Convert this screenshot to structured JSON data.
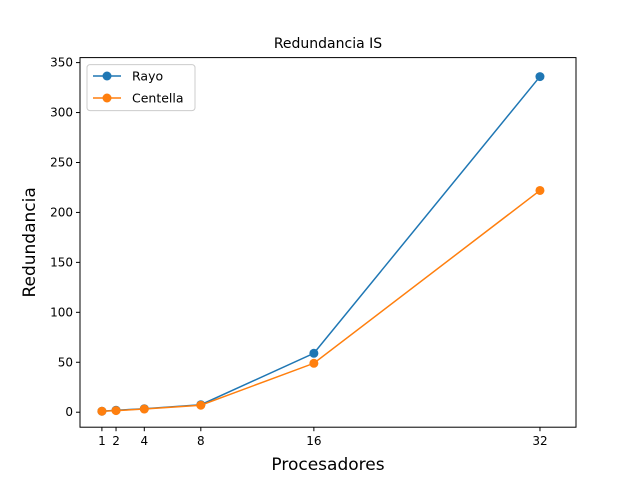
{
  "chart_data": {
    "type": "line",
    "title": "Redundancia IS",
    "xlabel": "Procesadores",
    "ylabel": "Redundancia",
    "x": [
      1,
      2,
      4,
      8,
      16,
      32
    ],
    "xticks": [
      "1",
      "2",
      "4",
      "8",
      "16",
      "32"
    ],
    "yticks": [
      "0",
      "50",
      "100",
      "150",
      "200",
      "250",
      "300",
      "350"
    ],
    "xlim": [
      -0.55,
      34.55
    ],
    "ylim": [
      -15.0,
      355.0
    ],
    "grid": false,
    "legend_position": "top-left",
    "series": [
      {
        "name": "Rayo",
        "color": "#1f77b4",
        "values": [
          1,
          2,
          3.5,
          7.5,
          59,
          336
        ]
      },
      {
        "name": "Centella",
        "color": "#ff7f0e",
        "values": [
          1,
          1.6,
          3.2,
          7,
          49,
          222
        ]
      }
    ]
  }
}
